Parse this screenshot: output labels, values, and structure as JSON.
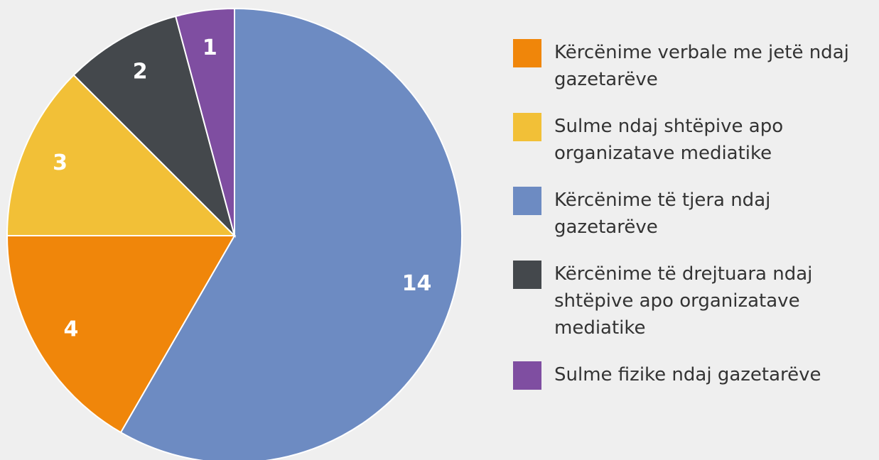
{
  "chart_data": {
    "type": "pie",
    "categories": [
      "Kërcënime të tjera ndaj gazetarëve",
      "Kërcënime verbale me jetë ndaj gazetarëve",
      "Sulme ndaj shtëpive apo organizatave mediatike",
      "Kërcënime të drejtuara ndaj shtëpive apo organizatave mediatike",
      "Sulme fizike ndaj gazetarëve"
    ],
    "values": [
      14,
      4,
      3,
      2,
      1
    ],
    "colors": [
      "#6d8bc2",
      "#f0860a",
      "#f2c037",
      "#44484c",
      "#7f4ea1"
    ],
    "legend_order": [
      1,
      2,
      0,
      3,
      4
    ],
    "legend": "right"
  }
}
